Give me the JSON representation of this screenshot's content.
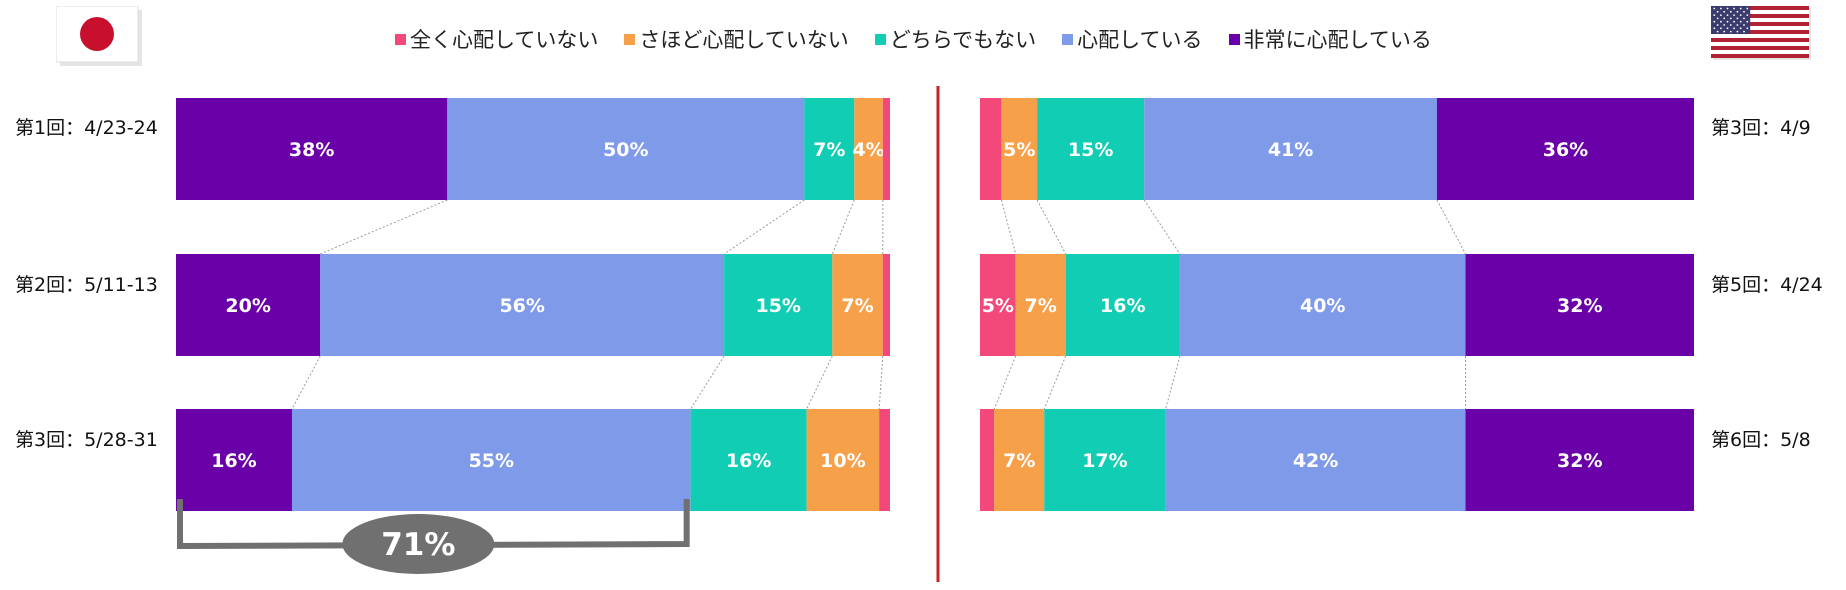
{
  "legend": [
    {
      "label": "全く心配していない",
      "color": "#f2497a"
    },
    {
      "label": "さほど心配していない",
      "color": "#f7a04a"
    },
    {
      "label": "どちらでもない",
      "color": "#10cdb3"
    },
    {
      "label": "心配している",
      "color": "#7f9ae8"
    },
    {
      "label": "非常に心配している",
      "color": "#6a00a8"
    }
  ],
  "japan": {
    "flag_icon": "japan-flag-icon",
    "rows": [
      {
        "label": "第1回：4/23-24"
      },
      {
        "label": "第2回：5/11-13"
      },
      {
        "label": "第3回：5/28-31"
      }
    ],
    "bracket_label": "71%"
  },
  "usa": {
    "flag_icon": "usa-flag-icon",
    "rows": [
      {
        "label": "第3回：4/9"
      },
      {
        "label": "第5回：4/24"
      },
      {
        "label": "第6回：5/8"
      }
    ]
  },
  "chart_data": [
    {
      "type": "bar",
      "orientation": "horizontal",
      "stacked": true,
      "percent": true,
      "panel": "japan",
      "categories": [
        "第1回：4/23-24",
        "第2回：5/11-13",
        "第3回：5/28-31"
      ],
      "stack_order": "非常に心配している → 全く心配していない (left to right)",
      "series": [
        {
          "name": "非常に心配している",
          "values": [
            38,
            20,
            16
          ],
          "labels": [
            "38%",
            "20%",
            "16%"
          ]
        },
        {
          "name": "心配している",
          "values": [
            50,
            56,
            55
          ],
          "labels": [
            "50%",
            "56%",
            "55%"
          ]
        },
        {
          "name": "どちらでもない",
          "values": [
            7,
            15,
            16
          ],
          "labels": [
            "7%",
            "15%",
            "16%"
          ]
        },
        {
          "name": "さほど心配していない",
          "values": [
            4,
            7,
            10
          ],
          "labels": [
            "4%",
            "7%",
            "10%"
          ]
        },
        {
          "name": "全く心配していない",
          "values": [
            1,
            1,
            1.5
          ],
          "labels": [
            "",
            "",
            ""
          ]
        }
      ],
      "annotation": "71%"
    },
    {
      "type": "bar",
      "orientation": "horizontal",
      "stacked": true,
      "percent": true,
      "panel": "usa",
      "categories": [
        "第3回：4/9",
        "第5回：4/24",
        "第6回：5/8"
      ],
      "stack_order": "全く心配していない → 非常に心配している (left to right)",
      "series": [
        {
          "name": "全く心配していない",
          "values": [
            3,
            5,
            2
          ],
          "labels": [
            "",
            "5%",
            ""
          ]
        },
        {
          "name": "さほど心配していない",
          "values": [
            5,
            7,
            7
          ],
          "labels": [
            "5%",
            "7%",
            "7%"
          ]
        },
        {
          "name": "どちらでもない",
          "values": [
            15,
            16,
            17
          ],
          "labels": [
            "15%",
            "16%",
            "17%"
          ]
        },
        {
          "name": "心配している",
          "values": [
            41,
            40,
            42
          ],
          "labels": [
            "41%",
            "40%",
            "42%"
          ]
        },
        {
          "name": "非常に心配している",
          "values": [
            36,
            32,
            32
          ],
          "labels": [
            "36%",
            "32%",
            "32%"
          ]
        }
      ]
    }
  ]
}
